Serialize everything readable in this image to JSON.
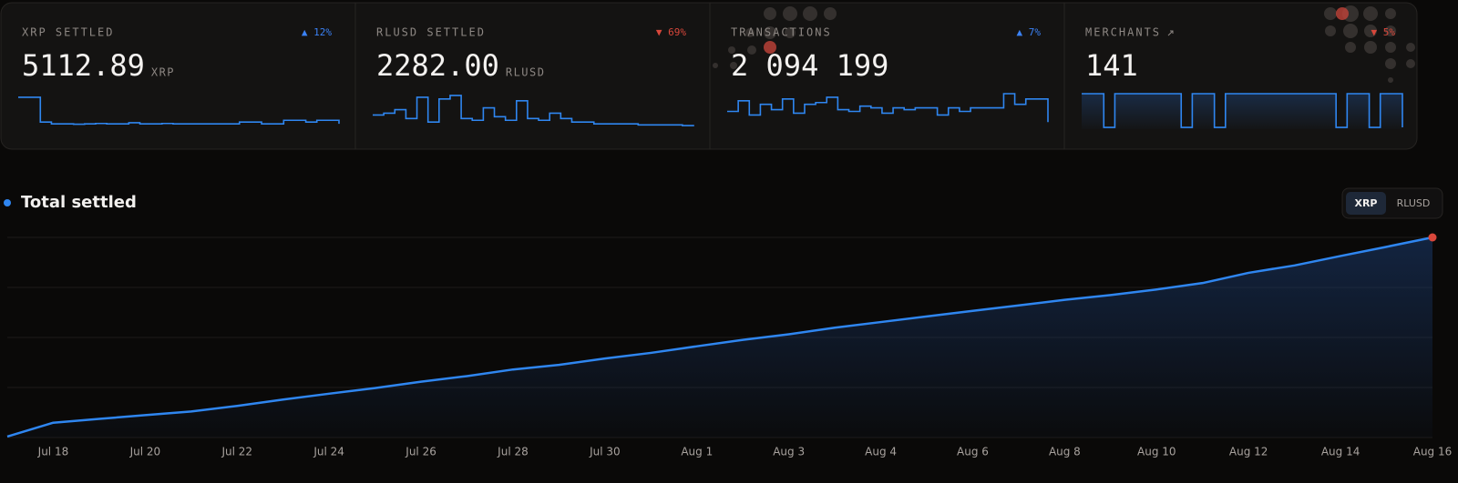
{
  "cards": [
    {
      "label": "XRP SETTLED",
      "change": "▲ 12%",
      "change_color": "#3b82f6",
      "value": "5112.89",
      "unit": "XRP",
      "sparkline": {
        "type": "line",
        "color": "#2f86f0",
        "area": false,
        "ylim": [
          0,
          100
        ],
        "values": [
          90,
          90,
          20,
          15,
          15,
          14,
          15,
          16,
          15,
          15,
          18,
          15,
          15,
          16,
          15,
          15,
          15,
          15,
          15,
          15,
          20,
          20,
          15,
          15,
          25,
          25,
          20,
          25,
          25,
          15
        ]
      }
    },
    {
      "label": "RLUSD SETTLED",
      "change": "▼ 69%",
      "change_color": "#d9473b",
      "value": "2282.00",
      "unit": "RLUSD",
      "sparkline": {
        "type": "line",
        "color": "#2f86f0",
        "area": false,
        "ylim": [
          0,
          100
        ],
        "values": [
          40,
          45,
          55,
          30,
          90,
          20,
          85,
          95,
          30,
          25,
          60,
          35,
          25,
          80,
          30,
          25,
          45,
          30,
          20,
          20,
          15,
          15,
          15,
          15,
          12,
          12,
          12,
          12,
          10,
          8
        ]
      }
    },
    {
      "label": "TRANSACTIONS",
      "change": "▲ 7%",
      "change_color": "#3b82f6",
      "value": "2 094 199",
      "sparkline": {
        "type": "line",
        "color": "#2f86f0",
        "area": false,
        "ylim": [
          0,
          100
        ],
        "values": [
          50,
          80,
          40,
          70,
          55,
          85,
          45,
          70,
          75,
          90,
          55,
          50,
          65,
          60,
          45,
          60,
          55,
          60,
          60,
          40,
          60,
          50,
          60,
          60,
          60,
          100,
          70,
          85,
          85,
          20
        ]
      }
    },
    {
      "label": "MERCHANTS",
      "change": "▼ 5%",
      "change_color": "#d9473b",
      "value": "141",
      "sparkline": {
        "type": "line",
        "color": "#2f86f0",
        "area": true,
        "ylim": [
          0,
          100
        ],
        "values": [
          100,
          100,
          5,
          100,
          100,
          100,
          100,
          100,
          100,
          5,
          100,
          100,
          5,
          100,
          100,
          100,
          100,
          100,
          100,
          100,
          100,
          100,
          100,
          5,
          100,
          100,
          5,
          100,
          100,
          5
        ]
      }
    }
  ],
  "chart": {
    "type": "line",
    "title": "Total settled",
    "toggle": [
      "XRP",
      "RLUSD"
    ],
    "color": "#2f86f0",
    "end_marker_color": "#d9473b",
    "ylim": [
      0,
      100
    ],
    "grid_lines": [
      0,
      25,
      50,
      75,
      100
    ],
    "categories": [
      null,
      "Jul 18",
      null,
      "Jul 20",
      null,
      "Jul 22",
      null,
      "Jul 24",
      null,
      "Jul 26",
      null,
      "Jul 28",
      null,
      "Jul 30",
      null,
      "Aug 1",
      null,
      "Aug 3",
      null,
      "Aug 4",
      null,
      "Aug 6",
      null,
      "Aug 8",
      null,
      "Aug 10",
      null,
      "Aug 12",
      null,
      "Aug 14",
      null,
      "Aug 16"
    ],
    "values": [
      0.5,
      7.4,
      9.3,
      11.2,
      13,
      15.8,
      19,
      21.9,
      24.7,
      27.9,
      30.7,
      34,
      36.3,
      39.5,
      42.3,
      45.6,
      48.8,
      51.6,
      54.9,
      57.7,
      60.5,
      63.3,
      66,
      68.8,
      71.2,
      74,
      77.2,
      82.3,
      86,
      90.7,
      95.3,
      100
    ]
  }
}
